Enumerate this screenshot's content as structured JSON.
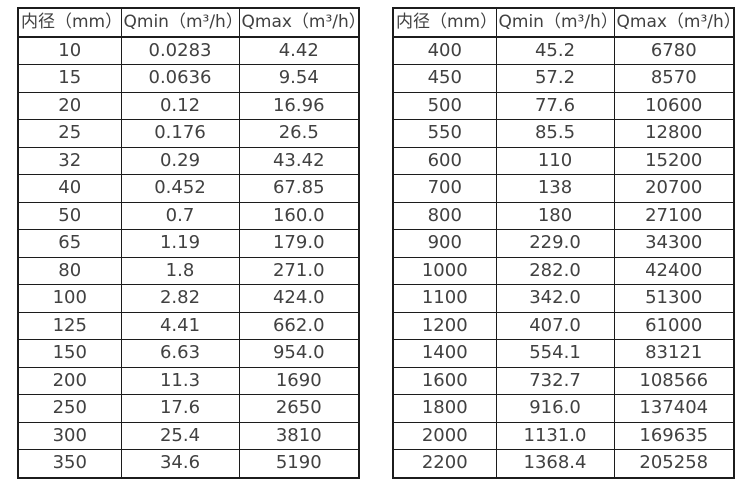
{
  "page": {
    "background": "#ffffff",
    "text_color": "#414141",
    "border_color": "#1c1c1c"
  },
  "tables": [
    {
      "headers": [
        "内径（mm）",
        "Qmin（m³/h）",
        "Qmax（m³/h）"
      ],
      "rows": [
        [
          "10",
          "0.0283",
          "4.42"
        ],
        [
          "15",
          "0.0636",
          "9.54"
        ],
        [
          "20",
          "0.12",
          "16.96"
        ],
        [
          "25",
          "0.176",
          "26.5"
        ],
        [
          "32",
          "0.29",
          "43.42"
        ],
        [
          "40",
          "0.452",
          "67.85"
        ],
        [
          "50",
          "0.7",
          "160.0"
        ],
        [
          "65",
          "1.19",
          "179.0"
        ],
        [
          "80",
          "1.8",
          "271.0"
        ],
        [
          "100",
          "2.82",
          "424.0"
        ],
        [
          "125",
          "4.41",
          "662.0"
        ],
        [
          "150",
          "6.63",
          "954.0"
        ],
        [
          "200",
          "11.3",
          "1690"
        ],
        [
          "250",
          "17.6",
          "2650"
        ],
        [
          "300",
          "25.4",
          "3810"
        ],
        [
          "350",
          "34.6",
          "5190"
        ]
      ]
    },
    {
      "headers": [
        "内径（mm）",
        "Qmin（m³/h）",
        "Qmax（m³/h）"
      ],
      "rows": [
        [
          "400",
          "45.2",
          "6780"
        ],
        [
          "450",
          "57.2",
          "8570"
        ],
        [
          "500",
          "77.6",
          "10600"
        ],
        [
          "550",
          "85.5",
          "12800"
        ],
        [
          "600",
          "110",
          "15200"
        ],
        [
          "700",
          "138",
          "20700"
        ],
        [
          "800",
          "180",
          "27100"
        ],
        [
          "900",
          "229.0",
          "34300"
        ],
        [
          "1000",
          "282.0",
          "42400"
        ],
        [
          "1100",
          "342.0",
          "51300"
        ],
        [
          "1200",
          "407.0",
          "61000"
        ],
        [
          "1400",
          "554.1",
          "83121"
        ],
        [
          "1600",
          "732.7",
          "108566"
        ],
        [
          "1800",
          "916.0",
          "137404"
        ],
        [
          "2000",
          "1131.0",
          "169635"
        ],
        [
          "2200",
          "1368.4",
          "205258"
        ]
      ]
    }
  ]
}
